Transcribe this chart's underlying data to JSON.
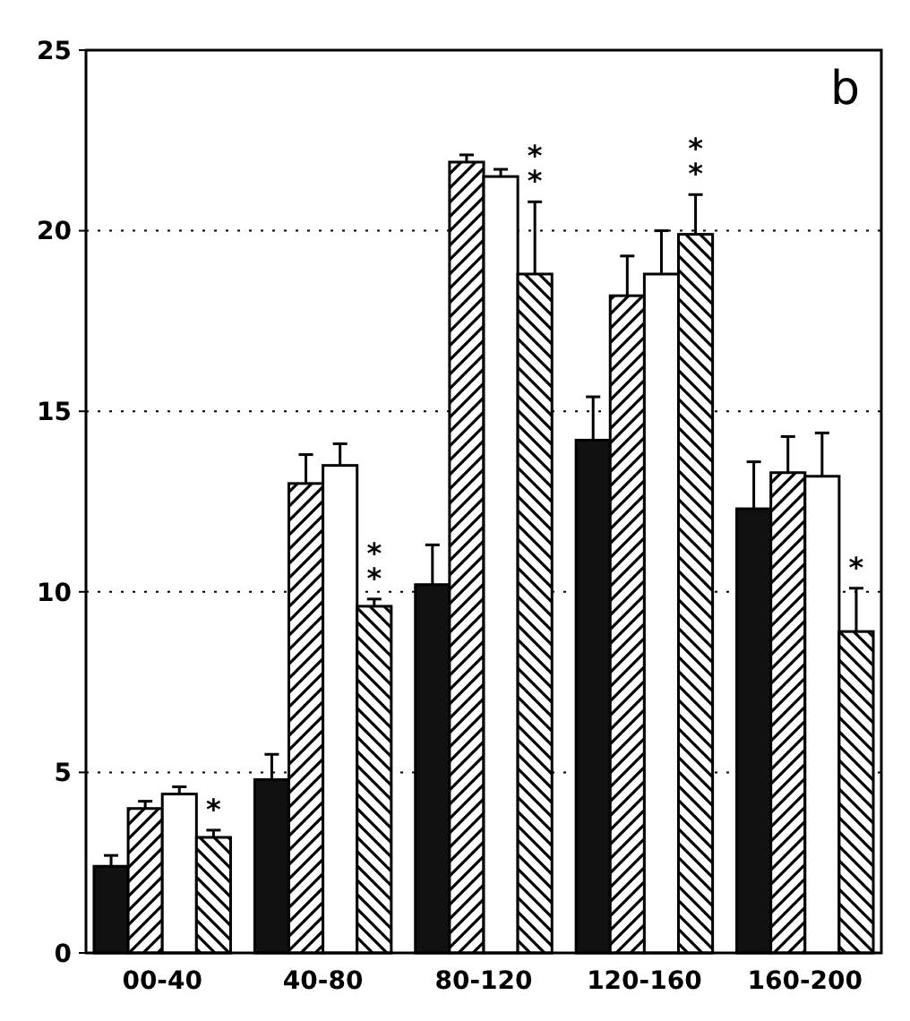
{
  "chart_data": {
    "type": "bar",
    "categories": [
      "00-40",
      "40-80",
      "80-120",
      "120-160",
      "160-200"
    ],
    "series": [
      {
        "color": "#111111",
        "values": [
          2.4,
          4.8,
          10.2,
          14.2,
          12.3
        ],
        "errors": [
          0.3,
          0.7,
          1.1,
          1.2,
          1.3
        ]
      },
      {
        "color": "#000000",
        "values": [
          4.0,
          13.0,
          21.9,
          18.2,
          13.3
        ],
        "errors": [
          0.2,
          0.8,
          0.2,
          1.1,
          1.0
        ]
      },
      {
        "color": "#ffffff",
        "values": [
          4.4,
          13.5,
          21.5,
          18.8,
          13.2
        ],
        "errors": [
          0.2,
          0.6,
          0.2,
          1.2,
          1.2
        ]
      },
      {
        "color": "#000000",
        "values": [
          3.2,
          9.6,
          18.8,
          19.9,
          8.9
        ],
        "errors": [
          0.2,
          0.2,
          2.0,
          1.1,
          1.2
        ]
      }
    ],
    "ylim": [
      0,
      25
    ],
    "yticks": [
      0,
      5,
      10,
      15,
      20,
      25
    ],
    "grid": "y",
    "annotations": [
      "b",
      "*",
      "**",
      "**",
      "**",
      "*"
    ]
  }
}
